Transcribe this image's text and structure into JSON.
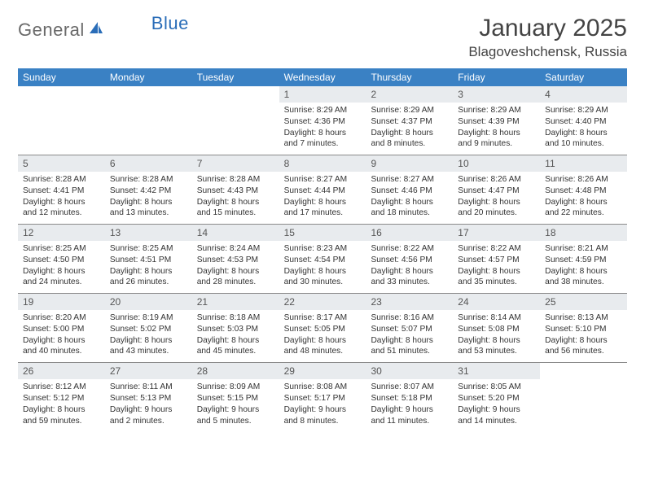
{
  "logo": {
    "text1": "General",
    "text2": "Blue"
  },
  "title": "January 2025",
  "location": "Blagoveshchensk, Russia",
  "colors": {
    "header_band": "#3a81c4",
    "daynum_band": "#e8ebee",
    "rule": "#8a8a8a",
    "text": "#333333",
    "logo_gray": "#6a6a6a",
    "logo_blue": "#2a6db8"
  },
  "dow": [
    "Sunday",
    "Monday",
    "Tuesday",
    "Wednesday",
    "Thursday",
    "Friday",
    "Saturday"
  ],
  "weeks": [
    [
      {
        "n": "",
        "sr": "",
        "ss": "",
        "dl": ""
      },
      {
        "n": "",
        "sr": "",
        "ss": "",
        "dl": ""
      },
      {
        "n": "",
        "sr": "",
        "ss": "",
        "dl": ""
      },
      {
        "n": "1",
        "sr": "Sunrise: 8:29 AM",
        "ss": "Sunset: 4:36 PM",
        "dl": "Daylight: 8 hours and 7 minutes."
      },
      {
        "n": "2",
        "sr": "Sunrise: 8:29 AM",
        "ss": "Sunset: 4:37 PM",
        "dl": "Daylight: 8 hours and 8 minutes."
      },
      {
        "n": "3",
        "sr": "Sunrise: 8:29 AM",
        "ss": "Sunset: 4:39 PM",
        "dl": "Daylight: 8 hours and 9 minutes."
      },
      {
        "n": "4",
        "sr": "Sunrise: 8:29 AM",
        "ss": "Sunset: 4:40 PM",
        "dl": "Daylight: 8 hours and 10 minutes."
      }
    ],
    [
      {
        "n": "5",
        "sr": "Sunrise: 8:28 AM",
        "ss": "Sunset: 4:41 PM",
        "dl": "Daylight: 8 hours and 12 minutes."
      },
      {
        "n": "6",
        "sr": "Sunrise: 8:28 AM",
        "ss": "Sunset: 4:42 PM",
        "dl": "Daylight: 8 hours and 13 minutes."
      },
      {
        "n": "7",
        "sr": "Sunrise: 8:28 AM",
        "ss": "Sunset: 4:43 PM",
        "dl": "Daylight: 8 hours and 15 minutes."
      },
      {
        "n": "8",
        "sr": "Sunrise: 8:27 AM",
        "ss": "Sunset: 4:44 PM",
        "dl": "Daylight: 8 hours and 17 minutes."
      },
      {
        "n": "9",
        "sr": "Sunrise: 8:27 AM",
        "ss": "Sunset: 4:46 PM",
        "dl": "Daylight: 8 hours and 18 minutes."
      },
      {
        "n": "10",
        "sr": "Sunrise: 8:26 AM",
        "ss": "Sunset: 4:47 PM",
        "dl": "Daylight: 8 hours and 20 minutes."
      },
      {
        "n": "11",
        "sr": "Sunrise: 8:26 AM",
        "ss": "Sunset: 4:48 PM",
        "dl": "Daylight: 8 hours and 22 minutes."
      }
    ],
    [
      {
        "n": "12",
        "sr": "Sunrise: 8:25 AM",
        "ss": "Sunset: 4:50 PM",
        "dl": "Daylight: 8 hours and 24 minutes."
      },
      {
        "n": "13",
        "sr": "Sunrise: 8:25 AM",
        "ss": "Sunset: 4:51 PM",
        "dl": "Daylight: 8 hours and 26 minutes."
      },
      {
        "n": "14",
        "sr": "Sunrise: 8:24 AM",
        "ss": "Sunset: 4:53 PM",
        "dl": "Daylight: 8 hours and 28 minutes."
      },
      {
        "n": "15",
        "sr": "Sunrise: 8:23 AM",
        "ss": "Sunset: 4:54 PM",
        "dl": "Daylight: 8 hours and 30 minutes."
      },
      {
        "n": "16",
        "sr": "Sunrise: 8:22 AM",
        "ss": "Sunset: 4:56 PM",
        "dl": "Daylight: 8 hours and 33 minutes."
      },
      {
        "n": "17",
        "sr": "Sunrise: 8:22 AM",
        "ss": "Sunset: 4:57 PM",
        "dl": "Daylight: 8 hours and 35 minutes."
      },
      {
        "n": "18",
        "sr": "Sunrise: 8:21 AM",
        "ss": "Sunset: 4:59 PM",
        "dl": "Daylight: 8 hours and 38 minutes."
      }
    ],
    [
      {
        "n": "19",
        "sr": "Sunrise: 8:20 AM",
        "ss": "Sunset: 5:00 PM",
        "dl": "Daylight: 8 hours and 40 minutes."
      },
      {
        "n": "20",
        "sr": "Sunrise: 8:19 AM",
        "ss": "Sunset: 5:02 PM",
        "dl": "Daylight: 8 hours and 43 minutes."
      },
      {
        "n": "21",
        "sr": "Sunrise: 8:18 AM",
        "ss": "Sunset: 5:03 PM",
        "dl": "Daylight: 8 hours and 45 minutes."
      },
      {
        "n": "22",
        "sr": "Sunrise: 8:17 AM",
        "ss": "Sunset: 5:05 PM",
        "dl": "Daylight: 8 hours and 48 minutes."
      },
      {
        "n": "23",
        "sr": "Sunrise: 8:16 AM",
        "ss": "Sunset: 5:07 PM",
        "dl": "Daylight: 8 hours and 51 minutes."
      },
      {
        "n": "24",
        "sr": "Sunrise: 8:14 AM",
        "ss": "Sunset: 5:08 PM",
        "dl": "Daylight: 8 hours and 53 minutes."
      },
      {
        "n": "25",
        "sr": "Sunrise: 8:13 AM",
        "ss": "Sunset: 5:10 PM",
        "dl": "Daylight: 8 hours and 56 minutes."
      }
    ],
    [
      {
        "n": "26",
        "sr": "Sunrise: 8:12 AM",
        "ss": "Sunset: 5:12 PM",
        "dl": "Daylight: 8 hours and 59 minutes."
      },
      {
        "n": "27",
        "sr": "Sunrise: 8:11 AM",
        "ss": "Sunset: 5:13 PM",
        "dl": "Daylight: 9 hours and 2 minutes."
      },
      {
        "n": "28",
        "sr": "Sunrise: 8:09 AM",
        "ss": "Sunset: 5:15 PM",
        "dl": "Daylight: 9 hours and 5 minutes."
      },
      {
        "n": "29",
        "sr": "Sunrise: 8:08 AM",
        "ss": "Sunset: 5:17 PM",
        "dl": "Daylight: 9 hours and 8 minutes."
      },
      {
        "n": "30",
        "sr": "Sunrise: 8:07 AM",
        "ss": "Sunset: 5:18 PM",
        "dl": "Daylight: 9 hours and 11 minutes."
      },
      {
        "n": "31",
        "sr": "Sunrise: 8:05 AM",
        "ss": "Sunset: 5:20 PM",
        "dl": "Daylight: 9 hours and 14 minutes."
      },
      {
        "n": "",
        "sr": "",
        "ss": "",
        "dl": ""
      }
    ]
  ]
}
